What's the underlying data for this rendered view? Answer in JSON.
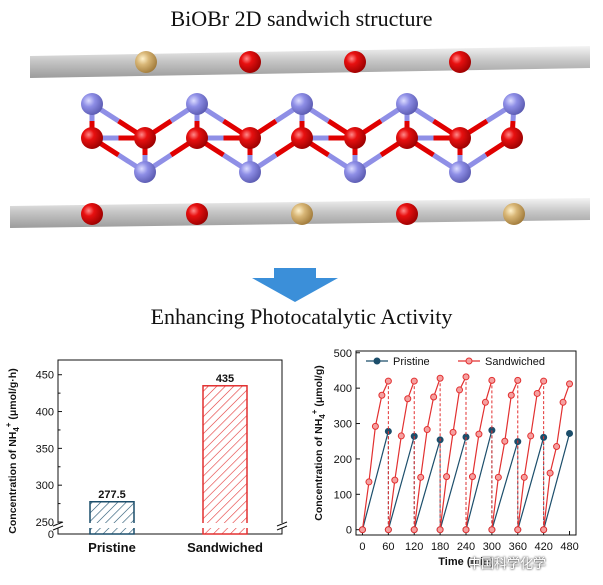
{
  "header": {
    "title": "BiOBr 2D sandwich structure",
    "subtitle": "Enhancing Photocatalytic Activity"
  },
  "colors": {
    "bi": "#e00000",
    "br": "#d9b77a",
    "o": "#8f8fe6",
    "pristine": "#1c4e6b",
    "sandwiched": "#e23030",
    "arrow": "#3b8fd9"
  },
  "watermark": "中国科学化学",
  "chart_data": [
    {
      "type": "bar",
      "categories": [
        "Pristine",
        "Sandwiched"
      ],
      "values": [
        277.5,
        435
      ],
      "value_labels": [
        "277.5",
        "435"
      ],
      "ylabel": "Concentration of NH4+ (μmol/g·h)",
      "ylabel_parts": {
        "main": "Concentration of NH",
        "sub": "4",
        "sup": "+",
        "tail": " (μmol/g·h)"
      },
      "ylim_lower": [
        0,
        10
      ],
      "ylim_upper": [
        250,
        470
      ],
      "yticks_lower": [
        "0"
      ],
      "yticks_upper": [
        "250",
        "300",
        "350",
        "400",
        "450"
      ],
      "yticks_upper_values": [
        250,
        300,
        350,
        400,
        450
      ],
      "hatch": "diagonal",
      "axis_break": true
    },
    {
      "type": "line",
      "xlabel": "Time (min)",
      "ylabel": "Concentration of NH4+ (μmol/g)",
      "ylabel_parts": {
        "main": "Concentration of NH",
        "sub": "4",
        "sup": "+",
        "tail": " (μmol/g)"
      },
      "xlim": [
        -15,
        495
      ],
      "ylim": [
        -15,
        505
      ],
      "xticks": [
        "0",
        "60",
        "120",
        "180",
        "240",
        "300",
        "360",
        "420",
        "480"
      ],
      "xtick_values": [
        0,
        60,
        120,
        180,
        240,
        300,
        360,
        420,
        480
      ],
      "yticks": [
        "0",
        "100",
        "200",
        "300",
        "400",
        "500"
      ],
      "ytick_values": [
        0,
        100,
        200,
        300,
        400,
        500
      ],
      "legend": "top",
      "series": [
        {
          "name": "Pristine",
          "segments": [
            {
              "x": [
                0,
                60
              ],
              "y": [
                0,
                278
              ]
            },
            {
              "x": [
                60,
                120
              ],
              "y": [
                0,
                264
              ]
            },
            {
              "x": [
                120,
                180
              ],
              "y": [
                0,
                254
              ]
            },
            {
              "x": [
                180,
                240
              ],
              "y": [
                0,
                262
              ]
            },
            {
              "x": [
                240,
                300
              ],
              "y": [
                0,
                281
              ]
            },
            {
              "x": [
                300,
                360
              ],
              "y": [
                0,
                249
              ]
            },
            {
              "x": [
                360,
                420
              ],
              "y": [
                0,
                261
              ]
            },
            {
              "x": [
                420,
                480
              ],
              "y": [
                0,
                272
              ]
            }
          ]
        },
        {
          "name": "Sandwiched",
          "segments": [
            {
              "x": [
                0,
                15,
                30,
                45,
                60
              ],
              "y": [
                0,
                135,
                292,
                380,
                420
              ]
            },
            {
              "x": [
                60,
                75,
                90,
                105,
                120
              ],
              "y": [
                0,
                140,
                265,
                370,
                420
              ]
            },
            {
              "x": [
                120,
                135,
                150,
                165,
                180
              ],
              "y": [
                0,
                148,
                283,
                375,
                428
              ]
            },
            {
              "x": [
                180,
                195,
                210,
                225,
                240
              ],
              "y": [
                0,
                150,
                275,
                395,
                432
              ]
            },
            {
              "x": [
                240,
                255,
                270,
                285,
                300
              ],
              "y": [
                0,
                150,
                270,
                360,
                422
              ]
            },
            {
              "x": [
                300,
                315,
                330,
                345,
                360
              ],
              "y": [
                0,
                148,
                250,
                380,
                422
              ]
            },
            {
              "x": [
                360,
                375,
                390,
                405,
                420
              ],
              "y": [
                0,
                148,
                265,
                385,
                420
              ]
            },
            {
              "x": [
                420,
                435,
                450,
                465,
                480
              ],
              "y": [
                0,
                160,
                235,
                360,
                412
              ]
            }
          ]
        }
      ]
    }
  ]
}
